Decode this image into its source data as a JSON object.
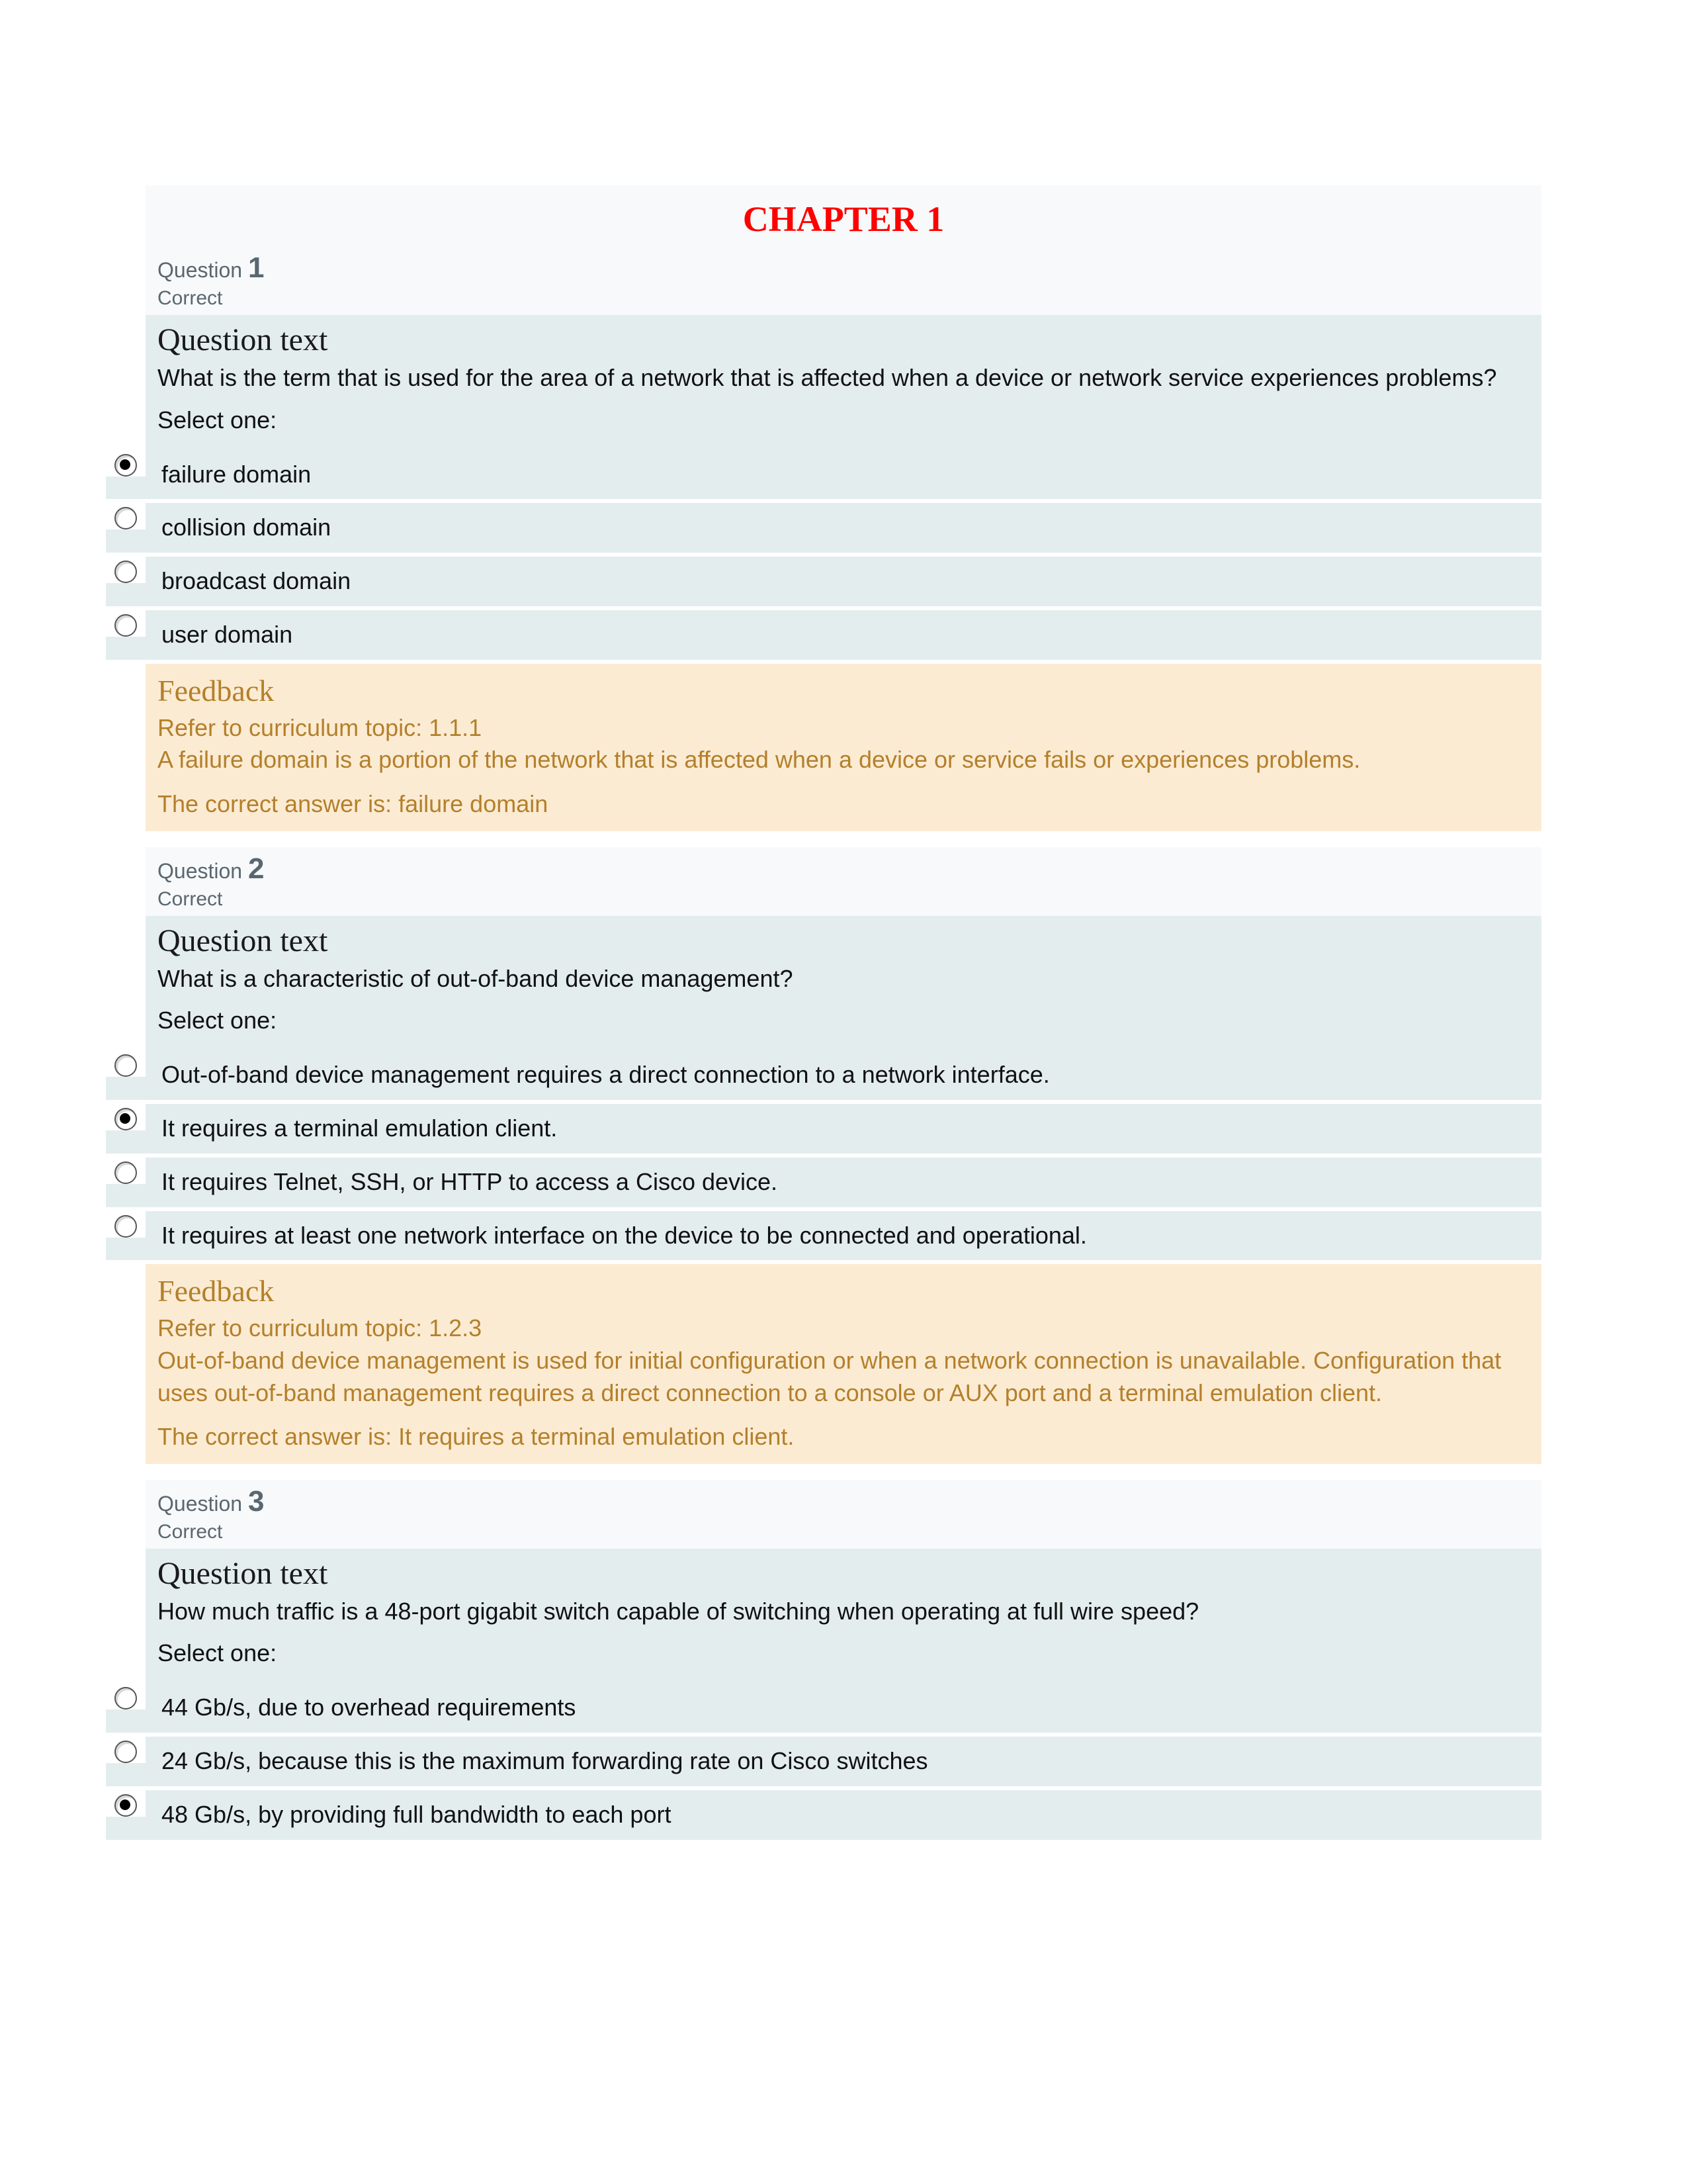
{
  "chapter_title": "CHAPTER 1",
  "question_label": "Question",
  "question_text_heading": "Question text",
  "select_one_label": "Select one:",
  "feedback_heading": "Feedback",
  "questions": [
    {
      "num": "1",
      "status": "Correct",
      "text": "What is the term that is used for the area of a network that is affected when a device or network service experiences problems?",
      "options": [
        {
          "label": "failure domain",
          "selected": true
        },
        {
          "label": "collision domain",
          "selected": false
        },
        {
          "label": "broadcast domain",
          "selected": false
        },
        {
          "label": "user domain",
          "selected": false
        }
      ],
      "feedback_text": "Refer to curriculum topic: 1.1.1\nA failure domain is a portion of the network that is affected when a device or service fails or experiences problems.",
      "correct_answer": "The correct answer is: failure domain"
    },
    {
      "num": "2",
      "status": "Correct",
      "text": "What is a characteristic of out-of-band device management?",
      "options": [
        {
          "label": "Out-of-band device management requires a direct connection to a network interface.",
          "selected": false
        },
        {
          "label": "It requires a terminal emulation client.",
          "selected": true
        },
        {
          "label": "It requires Telnet, SSH, or HTTP to access a Cisco device.",
          "selected": false
        },
        {
          "label": "It requires at least one network interface on the device to be connected and operational.",
          "selected": false
        }
      ],
      "feedback_text": "Refer to curriculum topic: 1.2.3\nOut-of-band device management is used for initial configuration or when a network connection is unavailable. Configuration that uses out-of-band management requires a direct connection to a console or AUX port and a terminal emulation client.",
      "correct_answer": "The correct answer is: It requires a terminal emulation client."
    },
    {
      "num": "3",
      "status": "Correct",
      "text": "How much traffic is a 48-port gigabit switch capable of switching when operating at full wire speed?",
      "options": [
        {
          "label": "44 Gb/s, due to overhead requirements",
          "selected": false
        },
        {
          "label": "24 Gb/s, because this is the maximum forwarding rate on Cisco switches",
          "selected": false
        },
        {
          "label": "48 Gb/s, by providing full bandwidth to each port",
          "selected": true
        }
      ],
      "feedback_text": "",
      "correct_answer": ""
    }
  ],
  "colors": {
    "chapter_title": "#ff0000",
    "header_bg": "#f7f9fa",
    "body_bg": "#e3edee",
    "feedback_bg": "#fcebd3",
    "feedback_text": "#b3802b",
    "muted_text": "#5a6770"
  }
}
